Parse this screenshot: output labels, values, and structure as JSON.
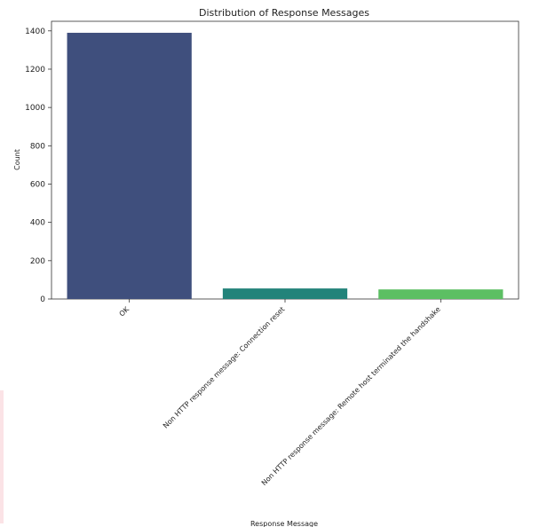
{
  "chart_data": {
    "type": "bar",
    "title": "Distribution of Response Messages",
    "xlabel": "Response Message",
    "ylabel": "Count",
    "categories": [
      "OK",
      "Non HTTP response message: Connection reset",
      "Non HTTP response message: Remote host terminated the handshake"
    ],
    "values": [
      1390,
      55,
      50
    ],
    "colors": [
      "#3f4f7d",
      "#23837a",
      "#5cbf63"
    ],
    "ylim": [
      0,
      1450
    ],
    "yticks": [
      0,
      200,
      400,
      600,
      800,
      1000,
      1200,
      1400
    ],
    "grid": false,
    "legend": false
  }
}
